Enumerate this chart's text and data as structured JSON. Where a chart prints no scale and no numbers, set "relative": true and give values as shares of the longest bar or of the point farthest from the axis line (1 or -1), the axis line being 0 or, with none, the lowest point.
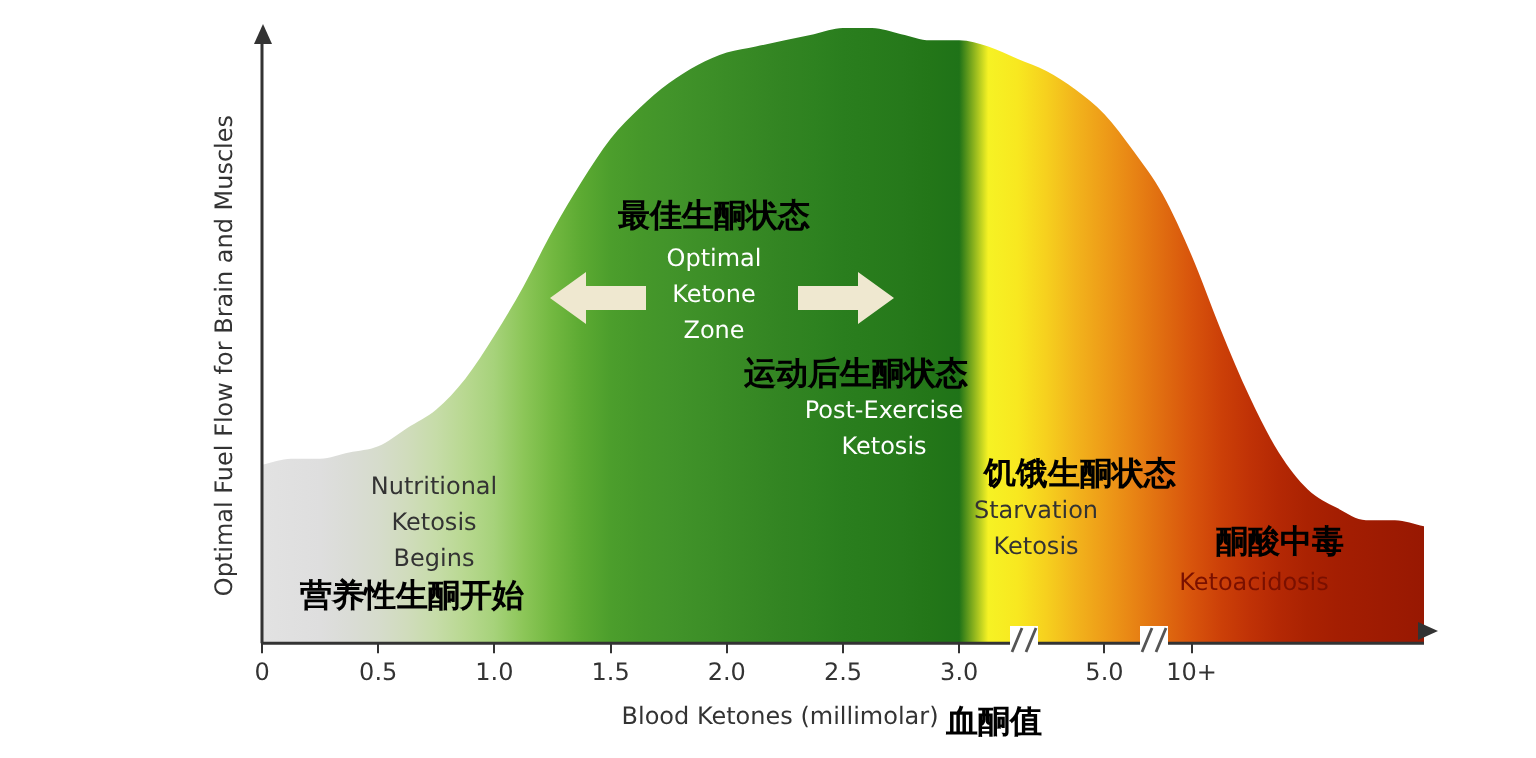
{
  "chart_data": {
    "type": "area",
    "relative": true,
    "tick_labels": "x",
    "xlabel": "Blood Ketones (millimolar)",
    "ylabel": "Optimal Fuel Flow for Brain and Muscles",
    "categories": [
      "0",
      null,
      null,
      null,
      "0.5",
      null,
      null,
      null,
      "1.0",
      null,
      null,
      null,
      "1.5",
      null,
      null,
      null,
      "2.0",
      null,
      null,
      null,
      "2.5",
      null,
      null,
      null,
      "3.0",
      null,
      null,
      null,
      null,
      "5.0",
      null,
      null,
      "10+",
      null,
      null,
      null,
      null,
      null,
      null,
      null,
      null
    ],
    "values": [
      0.29,
      0.3,
      0.3,
      0.31,
      0.32,
      0.35,
      0.38,
      0.43,
      0.5,
      0.58,
      0.67,
      0.75,
      0.82,
      0.87,
      0.91,
      0.94,
      0.96,
      0.97,
      0.98,
      0.99,
      1,
      1,
      0.99,
      0.98,
      0.98,
      0.97,
      0.95,
      0.93,
      0.9,
      0.86,
      0.8,
      0.73,
      0.63,
      0.51,
      0.4,
      0.31,
      0.25,
      0.22,
      0.2,
      0.2,
      0.19
    ],
    "colors": [
      "#e2e2e2",
      "#e0e0e0",
      "#dedede",
      "#dadcd6",
      "#d6dccc",
      "#d0dcbc",
      "#c6dca8",
      "#b8d890",
      "#a6d27a",
      "#8cc658",
      "#72b840",
      "#5caa32",
      "#4c9e2c",
      "#46982a",
      "#42942a",
      "#3e9028",
      "#3a8c26",
      "#368824",
      "#328422",
      "#2e8220",
      "#2a7e1e",
      "#287c1c",
      "#26791b",
      "#237618",
      "#1f7318",
      "#f6f224",
      "#f8e820",
      "#f6d01e",
      "#f2b41c",
      "#ee9c18",
      "#e88414",
      "#e06c10",
      "#d8540c",
      "#cc4008",
      "#c03206",
      "#b42804",
      "#aa2202",
      "#a41e02",
      "#a01c02",
      "#9c1a02",
      "#981802"
    ],
    "annotations": [
      "Nutritional\nKetosis\nBegins",
      "营养性生酮开始",
      "最佳生酮状态",
      "Optimal\nKetone\nZone",
      "运动后生酮状态",
      "Post-Exercise\nKetosis",
      "饥饿生酮状态",
      "Starvation\nKetosis",
      "酮酸中毒",
      "Ketoacidosis",
      "血酮值"
    ]
  }
}
